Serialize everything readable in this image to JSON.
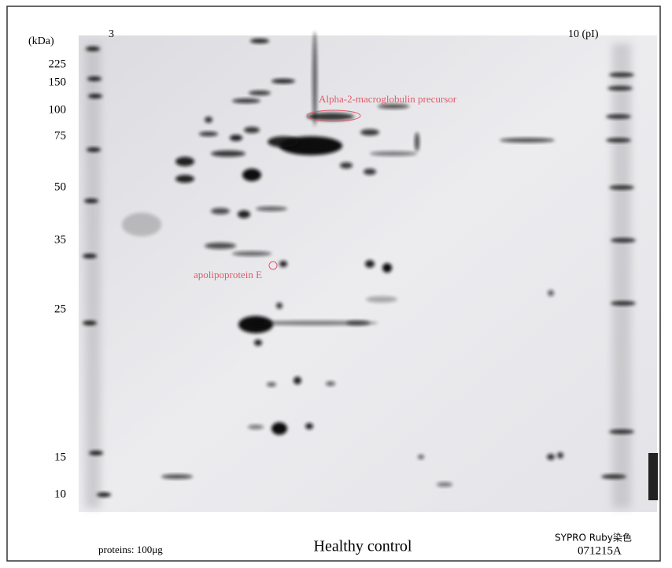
{
  "axis": {
    "unit": "(kDa)",
    "markers": [
      225,
      150,
      100,
      75,
      50,
      35,
      25,
      15,
      10
    ]
  },
  "pi": {
    "start": "3",
    "end": "10 (pI)"
  },
  "annotations": [
    "Alpha-2-macroglobulin precursor",
    "apolipoprotein E"
  ],
  "footer": {
    "protein": "proteins: 100μg",
    "title": "Healthy control",
    "stain": "SYPRO Ruby染色",
    "id": "071215A"
  }
}
